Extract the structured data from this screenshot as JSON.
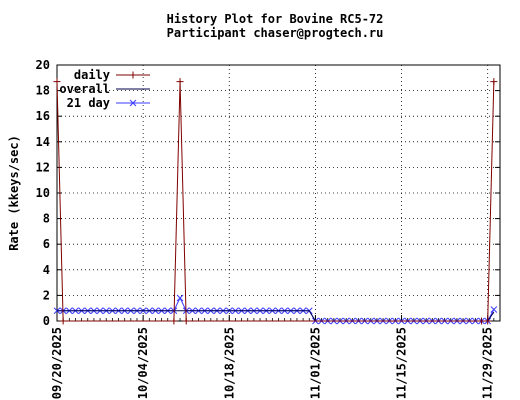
{
  "chart_data": {
    "type": "line",
    "title": "History Plot for Bovine RC5-72",
    "subtitle": "Participant chaser@progtech.ru",
    "ylabel": "Rate (kkeys/sec)",
    "xlabel": "",
    "ylim": [
      0,
      20
    ],
    "yticks": [
      "0",
      "2",
      "4",
      "6",
      "8",
      "10",
      "12",
      "14",
      "16",
      "18",
      "20"
    ],
    "xlim": [
      "2025-09-20",
      "2025-12-01"
    ],
    "xticks": [
      "09/20/2025",
      "10/04/2025",
      "10/18/2025",
      "11/01/2025",
      "11/15/2025",
      "11/29/2025"
    ],
    "grid": true,
    "legend_position": "top-left",
    "series": [
      {
        "name": "daily",
        "color": "#7f0000",
        "marker": "plus",
        "points": [
          [
            "2025-09-20",
            18.7
          ],
          [
            "2025-09-21",
            0.0
          ],
          [
            "2025-10-09",
            0.0
          ],
          [
            "2025-10-10",
            18.7
          ],
          [
            "2025-10-11",
            0.0
          ],
          [
            "2025-11-28",
            0.0
          ],
          [
            "2025-11-29",
            0.0
          ],
          [
            "2025-11-30",
            18.7
          ]
        ]
      },
      {
        "name": "overall",
        "color": "#00004f",
        "marker": "none",
        "points": [
          [
            "2025-09-20",
            0.8
          ],
          [
            "2025-10-31",
            0.8
          ],
          [
            "2025-11-01",
            0.0
          ],
          [
            "2025-11-29",
            0.0
          ],
          [
            "2025-11-30",
            0.7
          ]
        ]
      },
      {
        "name": "21 day",
        "color": "#3b3bff",
        "marker": "x",
        "points": [
          [
            "2025-09-20",
            0.8
          ],
          [
            "2025-09-21",
            0.8
          ],
          [
            "2025-09-22",
            0.8
          ],
          [
            "2025-09-23",
            0.8
          ],
          [
            "2025-09-24",
            0.8
          ],
          [
            "2025-09-25",
            0.8
          ],
          [
            "2025-09-26",
            0.8
          ],
          [
            "2025-09-27",
            0.8
          ],
          [
            "2025-09-28",
            0.8
          ],
          [
            "2025-09-29",
            0.8
          ],
          [
            "2025-09-30",
            0.8
          ],
          [
            "2025-10-01",
            0.8
          ],
          [
            "2025-10-02",
            0.8
          ],
          [
            "2025-10-03",
            0.8
          ],
          [
            "2025-10-04",
            0.8
          ],
          [
            "2025-10-05",
            0.8
          ],
          [
            "2025-10-06",
            0.8
          ],
          [
            "2025-10-07",
            0.8
          ],
          [
            "2025-10-08",
            0.8
          ],
          [
            "2025-10-09",
            0.8
          ],
          [
            "2025-10-10",
            1.8
          ],
          [
            "2025-10-11",
            0.8
          ],
          [
            "2025-10-12",
            0.8
          ],
          [
            "2025-10-13",
            0.8
          ],
          [
            "2025-10-14",
            0.8
          ],
          [
            "2025-10-15",
            0.8
          ],
          [
            "2025-10-16",
            0.8
          ],
          [
            "2025-10-17",
            0.8
          ],
          [
            "2025-10-18",
            0.8
          ],
          [
            "2025-10-19",
            0.8
          ],
          [
            "2025-10-20",
            0.8
          ],
          [
            "2025-10-21",
            0.8
          ],
          [
            "2025-10-22",
            0.8
          ],
          [
            "2025-10-23",
            0.8
          ],
          [
            "2025-10-24",
            0.8
          ],
          [
            "2025-10-25",
            0.8
          ],
          [
            "2025-10-26",
            0.8
          ],
          [
            "2025-10-27",
            0.8
          ],
          [
            "2025-10-28",
            0.8
          ],
          [
            "2025-10-29",
            0.8
          ],
          [
            "2025-10-30",
            0.8
          ],
          [
            "2025-10-31",
            0.8
          ],
          [
            "2025-11-01",
            0.0
          ],
          [
            "2025-11-02",
            0.0
          ],
          [
            "2025-11-03",
            0.0
          ],
          [
            "2025-11-04",
            0.0
          ],
          [
            "2025-11-05",
            0.0
          ],
          [
            "2025-11-06",
            0.0
          ],
          [
            "2025-11-07",
            0.0
          ],
          [
            "2025-11-08",
            0.0
          ],
          [
            "2025-11-09",
            0.0
          ],
          [
            "2025-11-10",
            0.0
          ],
          [
            "2025-11-11",
            0.0
          ],
          [
            "2025-11-12",
            0.0
          ],
          [
            "2025-11-13",
            0.0
          ],
          [
            "2025-11-14",
            0.0
          ],
          [
            "2025-11-15",
            0.0
          ],
          [
            "2025-11-16",
            0.0
          ],
          [
            "2025-11-17",
            0.0
          ],
          [
            "2025-11-18",
            0.0
          ],
          [
            "2025-11-19",
            0.0
          ],
          [
            "2025-11-20",
            0.0
          ],
          [
            "2025-11-21",
            0.0
          ],
          [
            "2025-11-22",
            0.0
          ],
          [
            "2025-11-23",
            0.0
          ],
          [
            "2025-11-24",
            0.0
          ],
          [
            "2025-11-25",
            0.0
          ],
          [
            "2025-11-26",
            0.0
          ],
          [
            "2025-11-27",
            0.0
          ],
          [
            "2025-11-28",
            0.0
          ],
          [
            "2025-11-29",
            0.0
          ],
          [
            "2025-11-30",
            0.9
          ]
        ]
      }
    ]
  }
}
